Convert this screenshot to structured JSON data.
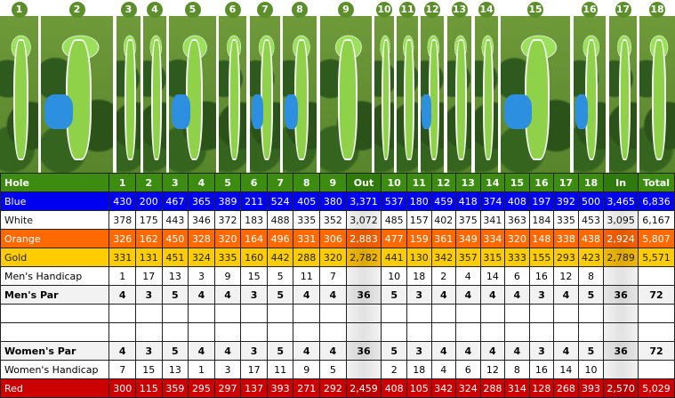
{
  "holes": [
    "1",
    "2",
    "3",
    "4",
    "5",
    "6",
    "7",
    "8",
    "9",
    "10",
    "11",
    "12",
    "13",
    "14",
    "15",
    "16",
    "17",
    "18"
  ],
  "columns": [
    "Hole",
    "1",
    "2",
    "3",
    "4",
    "5",
    "6",
    "7",
    "8",
    "9",
    "Out",
    "10",
    "11",
    "12",
    "13",
    "14",
    "15",
    "16",
    "17",
    "18",
    "In",
    "Total"
  ],
  "rows": [
    {
      "style": "blue",
      "label": "Blue",
      "values": [
        "430",
        "200",
        "467",
        "365",
        "389",
        "211",
        "524",
        "405",
        "380",
        "3,371",
        "537",
        "180",
        "459",
        "418",
        "374",
        "408",
        "197",
        "392",
        "500",
        "3,465",
        "6,836"
      ]
    },
    {
      "style": "white",
      "label": "White",
      "values": [
        "378",
        "175",
        "443",
        "346",
        "372",
        "183",
        "488",
        "335",
        "352",
        "3,072",
        "485",
        "157",
        "402",
        "375",
        "341",
        "363",
        "184",
        "335",
        "453",
        "3,095",
        "6,167"
      ]
    },
    {
      "style": "orange",
      "label": "Orange",
      "values": [
        "326",
        "162",
        "450",
        "328",
        "320",
        "164",
        "496",
        "331",
        "306",
        "2,883",
        "477",
        "159",
        "361",
        "349",
        "334",
        "320",
        "148",
        "338",
        "438",
        "2,924",
        "5,807"
      ]
    },
    {
      "style": "gold",
      "label": "Gold",
      "values": [
        "331",
        "131",
        "451",
        "324",
        "335",
        "160",
        "442",
        "288",
        "320",
        "2,782",
        "441",
        "130",
        "342",
        "357",
        "315",
        "333",
        "155",
        "293",
        "423",
        "2,789",
        "5,571"
      ]
    },
    {
      "style": "plain",
      "label": "Men's Handicap",
      "values": [
        "1",
        "17",
        "13",
        "3",
        "9",
        "15",
        "5",
        "11",
        "7",
        "",
        "10",
        "18",
        "2",
        "4",
        "14",
        "6",
        "16",
        "12",
        "8",
        "",
        ""
      ]
    },
    {
      "style": "par",
      "label": "Men's Par",
      "values": [
        "4",
        "3",
        "5",
        "4",
        "4",
        "3",
        "5",
        "4",
        "4",
        "36",
        "5",
        "3",
        "4",
        "4",
        "4",
        "4",
        "3",
        "4",
        "5",
        "36",
        "72"
      ]
    },
    {
      "style": "plain",
      "label": "",
      "values": [
        "",
        "",
        "",
        "",
        "",
        "",
        "",
        "",
        "",
        "",
        "",
        "",
        "",
        "",
        "",
        "",
        "",
        "",
        "",
        "",
        ""
      ]
    },
    {
      "style": "plain",
      "label": "",
      "values": [
        "",
        "",
        "",
        "",
        "",
        "",
        "",
        "",
        "",
        "",
        "",
        "",
        "",
        "",
        "",
        "",
        "",
        "",
        "",
        "",
        ""
      ]
    },
    {
      "style": "par",
      "label": "Women's Par",
      "values": [
        "4",
        "3",
        "5",
        "4",
        "4",
        "3",
        "5",
        "4",
        "4",
        "36",
        "5",
        "3",
        "4",
        "4",
        "4",
        "4",
        "3",
        "4",
        "5",
        "36",
        "72"
      ]
    },
    {
      "style": "plain",
      "label": "Women's Handicap",
      "values": [
        "7",
        "15",
        "13",
        "1",
        "3",
        "17",
        "11",
        "9",
        "5",
        "",
        "2",
        "18",
        "4",
        "6",
        "12",
        "8",
        "16",
        "14",
        "10",
        "",
        ""
      ]
    },
    {
      "style": "red",
      "label": "Red",
      "values": [
        "300",
        "115",
        "359",
        "295",
        "297",
        "137",
        "393",
        "271",
        "292",
        "2,459",
        "408",
        "105",
        "342",
        "324",
        "288",
        "314",
        "128",
        "268",
        "393",
        "2,570",
        "5,029"
      ]
    }
  ]
}
